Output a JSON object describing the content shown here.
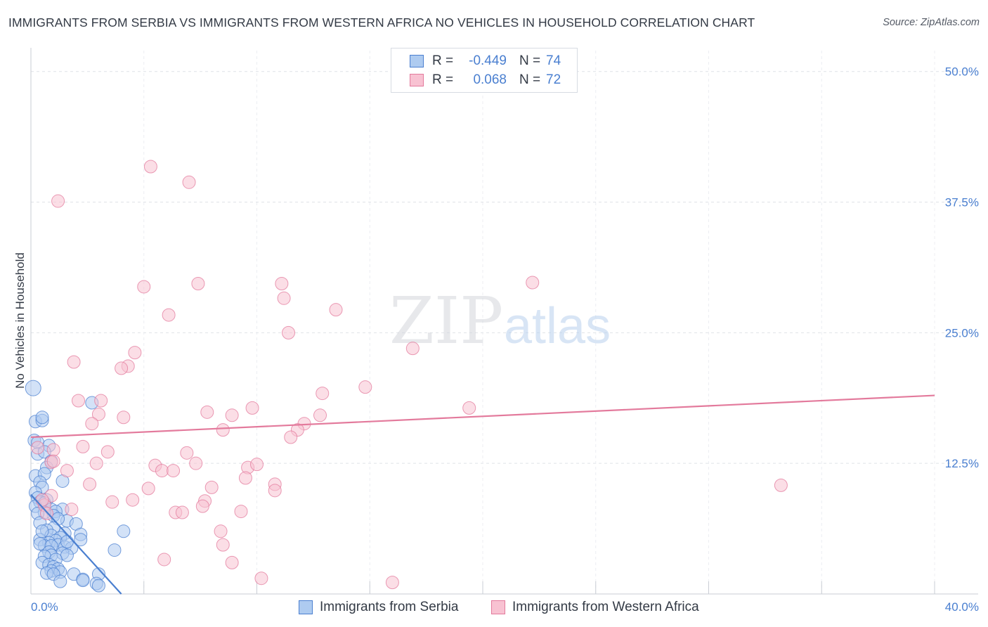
{
  "title": "IMMIGRANTS FROM SERBIA VS IMMIGRANTS FROM WESTERN AFRICA NO VEHICLES IN HOUSEHOLD CORRELATION CHART",
  "source": "Source: ZipAtlas.com",
  "watermark": {
    "zip": "ZIP",
    "atlas": "atlas"
  },
  "legend": {
    "r_label": "R =",
    "n_label": "N =",
    "rows": [
      {
        "name": "Immigrants from Serbia",
        "r": "-0.449",
        "n": "74",
        "fill": "#aecbf0",
        "stroke": "#4a7fd0"
      },
      {
        "name": "Immigrants from Western Africa",
        "r": "0.068",
        "n": "72",
        "fill": "#f8c2d2",
        "stroke": "#e37a9c"
      }
    ]
  },
  "chart_data": {
    "type": "scatter",
    "title": "IMMIGRANTS FROM SERBIA VS IMMIGRANTS FROM WESTERN AFRICA NO VEHICLES IN HOUSEHOLD CORRELATION CHART",
    "xlabel": "",
    "ylabel": "No Vehicles in Household",
    "xlim": [
      0,
      40
    ],
    "ylim": [
      0,
      52
    ],
    "x_tick_labels": [
      "0.0%",
      "40.0%"
    ],
    "y_ticks": [
      12.5,
      25.0,
      37.5,
      50.0
    ],
    "y_tick_labels": [
      "12.5%",
      "25.0%",
      "37.5%",
      "50.0%"
    ],
    "grid": true,
    "series": [
      {
        "name": "Immigrants from Serbia",
        "color": "#4a7fd0",
        "fill": "#aecbf0",
        "trend": {
          "x": [
            0.0,
            4.0
          ],
          "y": [
            9.5,
            0.0
          ]
        },
        "points": [
          [
            0.1,
            19.7
          ],
          [
            0.15,
            14.7
          ],
          [
            0.2,
            16.5
          ],
          [
            0.5,
            16.6
          ],
          [
            0.5,
            16.9
          ],
          [
            2.7,
            18.3
          ],
          [
            0.3,
            14.5
          ],
          [
            0.8,
            14.2
          ],
          [
            0.3,
            13.4
          ],
          [
            0.6,
            13.6
          ],
          [
            0.9,
            12.7
          ],
          [
            0.7,
            12.1
          ],
          [
            0.2,
            11.3
          ],
          [
            0.6,
            11.5
          ],
          [
            0.4,
            10.7
          ],
          [
            1.4,
            10.8
          ],
          [
            0.5,
            10.2
          ],
          [
            0.2,
            9.7
          ],
          [
            0.3,
            9.2
          ],
          [
            0.7,
            9.0
          ],
          [
            0.4,
            8.8
          ],
          [
            0.6,
            8.7
          ],
          [
            0.2,
            8.4
          ],
          [
            0.9,
            8.1
          ],
          [
            1.4,
            8.1
          ],
          [
            1.1,
            7.9
          ],
          [
            1.0,
            7.5
          ],
          [
            0.6,
            7.8
          ],
          [
            1.6,
            7.0
          ],
          [
            0.3,
            7.7
          ],
          [
            1.2,
            7.2
          ],
          [
            2.0,
            6.7
          ],
          [
            0.4,
            6.8
          ],
          [
            1.0,
            6.3
          ],
          [
            0.7,
            6.1
          ],
          [
            1.5,
            5.8
          ],
          [
            2.2,
            5.7
          ],
          [
            0.9,
            5.6
          ],
          [
            1.3,
            5.4
          ],
          [
            4.1,
            6.0
          ],
          [
            0.4,
            5.2
          ],
          [
            1.1,
            5.1
          ],
          [
            2.2,
            5.2
          ],
          [
            0.8,
            4.9
          ],
          [
            1.2,
            4.7
          ],
          [
            1.5,
            4.5
          ],
          [
            0.6,
            4.6
          ],
          [
            0.4,
            4.8
          ],
          [
            0.9,
            4.6
          ],
          [
            1.8,
            4.4
          ],
          [
            3.7,
            4.2
          ],
          [
            0.8,
            4.0
          ],
          [
            1.4,
            3.9
          ],
          [
            0.9,
            3.7
          ],
          [
            1.6,
            3.7
          ],
          [
            0.6,
            3.6
          ],
          [
            1.1,
            3.3
          ],
          [
            0.5,
            3.0
          ],
          [
            0.8,
            2.8
          ],
          [
            1.0,
            2.6
          ],
          [
            1.2,
            2.4
          ],
          [
            0.9,
            2.2
          ],
          [
            1.3,
            2.1
          ],
          [
            0.7,
            2.0
          ],
          [
            1.0,
            1.9
          ],
          [
            1.9,
            1.9
          ],
          [
            3.0,
            1.9
          ],
          [
            2.3,
            1.4
          ],
          [
            1.3,
            1.2
          ],
          [
            2.3,
            1.3
          ],
          [
            2.9,
            1.0
          ],
          [
            3.0,
            0.8
          ],
          [
            0.5,
            6.0
          ],
          [
            1.6,
            5.0
          ]
        ]
      },
      {
        "name": "Immigrants from Western Africa",
        "color": "#e37a9c",
        "fill": "#f8c2d2",
        "trend": {
          "x": [
            0.0,
            40.0
          ],
          "y": [
            15.0,
            19.0
          ]
        },
        "points": [
          [
            5.3,
            40.9
          ],
          [
            7.0,
            39.4
          ],
          [
            1.2,
            37.6
          ],
          [
            5.0,
            29.4
          ],
          [
            7.4,
            29.7
          ],
          [
            11.1,
            29.7
          ],
          [
            22.2,
            29.8
          ],
          [
            11.2,
            28.3
          ],
          [
            13.5,
            27.2
          ],
          [
            6.1,
            26.7
          ],
          [
            11.4,
            25.0
          ],
          [
            16.9,
            23.5
          ],
          [
            4.6,
            23.1
          ],
          [
            1.9,
            22.2
          ],
          [
            4.3,
            21.8
          ],
          [
            4.0,
            21.6
          ],
          [
            14.8,
            19.8
          ],
          [
            12.9,
            19.2
          ],
          [
            3.1,
            18.5
          ],
          [
            2.1,
            18.5
          ],
          [
            9.8,
            17.8
          ],
          [
            19.4,
            17.8
          ],
          [
            7.8,
            17.4
          ],
          [
            8.9,
            17.1
          ],
          [
            12.8,
            17.1
          ],
          [
            3.0,
            17.2
          ],
          [
            4.1,
            16.9
          ],
          [
            2.7,
            16.3
          ],
          [
            12.1,
            16.3
          ],
          [
            8.5,
            15.7
          ],
          [
            11.8,
            15.7
          ],
          [
            11.5,
            15.0
          ],
          [
            1.0,
            13.8
          ],
          [
            2.3,
            14.1
          ],
          [
            3.4,
            13.6
          ],
          [
            6.9,
            13.5
          ],
          [
            0.9,
            12.6
          ],
          [
            2.9,
            12.5
          ],
          [
            5.5,
            12.3
          ],
          [
            7.3,
            12.5
          ],
          [
            9.6,
            12.1
          ],
          [
            10.0,
            12.4
          ],
          [
            1.6,
            11.8
          ],
          [
            5.8,
            11.8
          ],
          [
            6.3,
            11.8
          ],
          [
            9.5,
            11.1
          ],
          [
            10.8,
            10.5
          ],
          [
            2.6,
            10.5
          ],
          [
            8.0,
            10.2
          ],
          [
            33.2,
            10.4
          ],
          [
            5.2,
            10.1
          ],
          [
            10.8,
            9.9
          ],
          [
            0.9,
            9.4
          ],
          [
            4.5,
            9.0
          ],
          [
            7.7,
            8.9
          ],
          [
            3.6,
            8.8
          ],
          [
            0.6,
            8.5
          ],
          [
            7.6,
            8.4
          ],
          [
            1.8,
            8.1
          ],
          [
            9.3,
            7.9
          ],
          [
            6.4,
            7.8
          ],
          [
            6.7,
            7.8
          ],
          [
            0.7,
            7.7
          ],
          [
            8.4,
            6.0
          ],
          [
            8.5,
            4.7
          ],
          [
            5.9,
            3.3
          ],
          [
            8.9,
            3.0
          ],
          [
            10.2,
            1.5
          ],
          [
            16.0,
            1.1
          ],
          [
            0.5,
            9.0
          ],
          [
            1.0,
            12.7
          ],
          [
            0.3,
            14.0
          ]
        ]
      }
    ]
  }
}
